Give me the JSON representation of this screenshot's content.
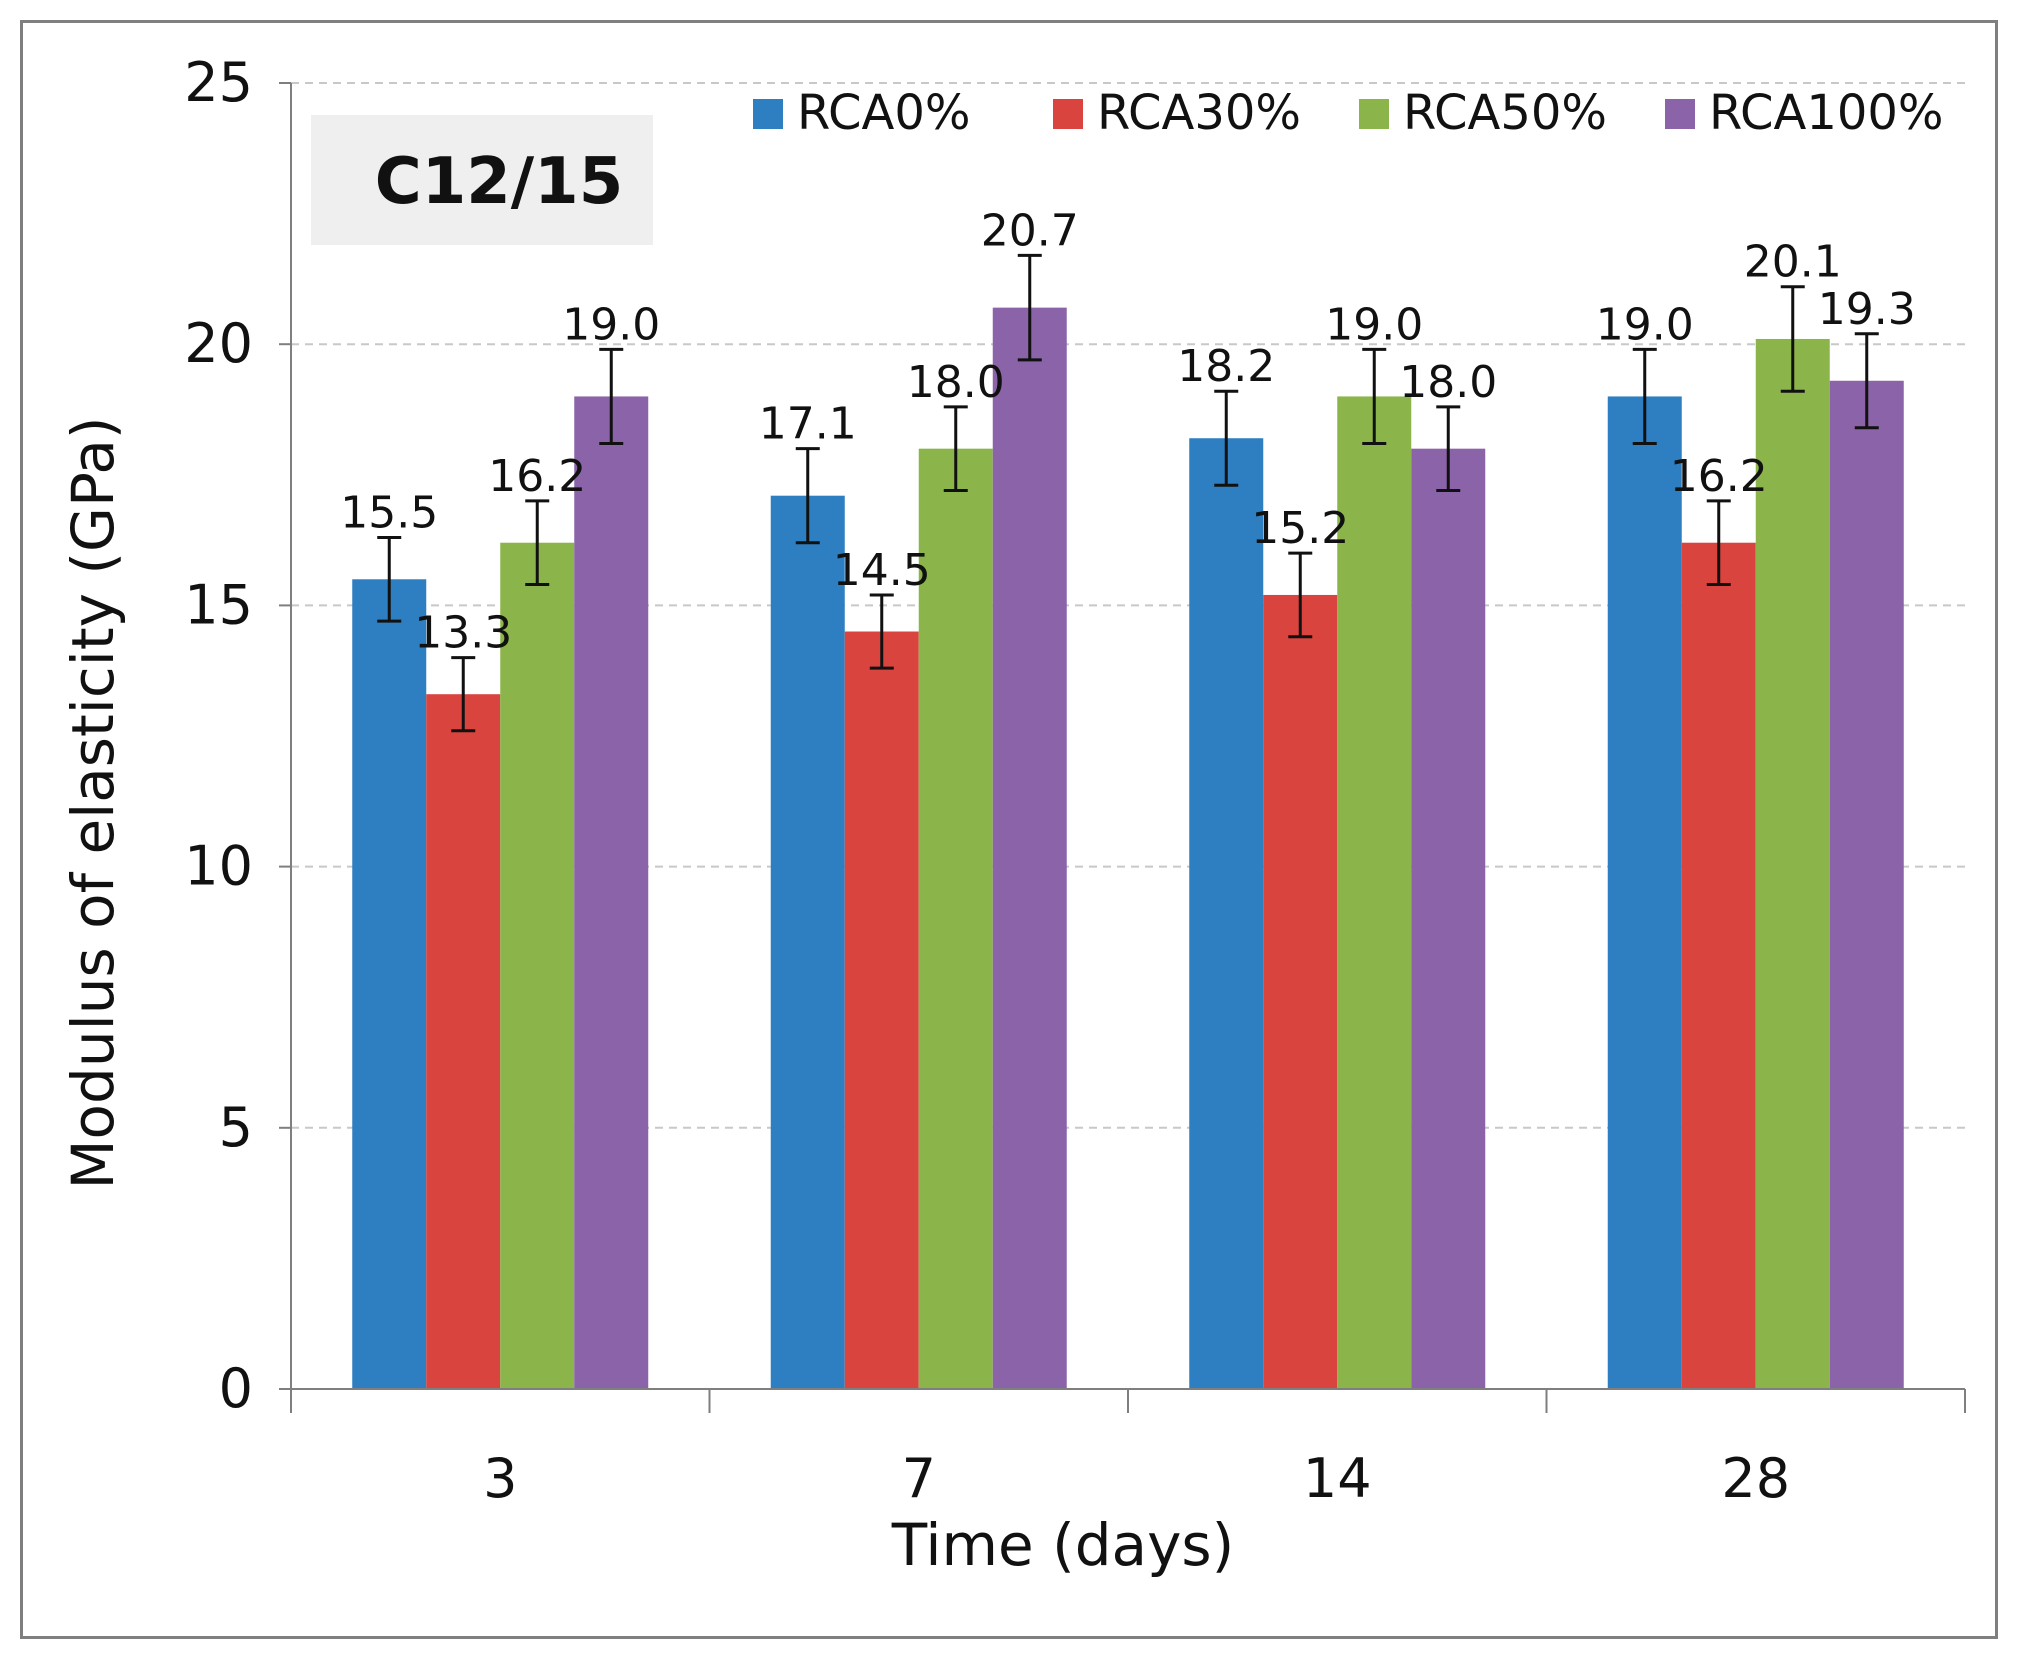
{
  "chart_data": {
    "type": "bar",
    "title": "",
    "annotation": "C12/15",
    "xlabel": "Time (days)",
    "ylabel": "Modulus of elasticity (GPa)",
    "ylim": [
      0,
      25
    ],
    "yticks": [
      "0",
      "5",
      "10",
      "15",
      "20",
      "25"
    ],
    "grid": true,
    "legend_position": "top",
    "categories": [
      "3",
      "7",
      "14",
      "28"
    ],
    "series": [
      {
        "name": "RCA0%",
        "color": "#2e7fc1",
        "values": [
          15.5,
          17.1,
          18.2,
          19.0
        ],
        "labels": [
          "15.5",
          "17.1",
          "18.2",
          "19.0"
        ],
        "error": [
          0.8,
          0.9,
          0.9,
          0.9
        ]
      },
      {
        "name": "RCA30%",
        "color": "#d9443f",
        "values": [
          13.3,
          14.5,
          15.2,
          16.2
        ],
        "labels": [
          "13.3",
          "14.5",
          "15.2",
          "16.2"
        ],
        "error": [
          0.7,
          0.7,
          0.8,
          0.8
        ]
      },
      {
        "name": "RCA50%",
        "color": "#8bb54a",
        "values": [
          16.2,
          18.0,
          19.0,
          20.1
        ],
        "labels": [
          "16.2",
          "18.0",
          "19.0",
          "20.1"
        ],
        "error": [
          0.8,
          0.8,
          0.9,
          1.0
        ]
      },
      {
        "name": "RCA100%",
        "color": "#8a63a8",
        "values": [
          19.0,
          20.7,
          18.0,
          19.3
        ],
        "labels": [
          "19.0",
          "20.7",
          "18.0",
          "19.3"
        ],
        "error": [
          0.9,
          1.0,
          0.8,
          0.9
        ]
      }
    ]
  }
}
